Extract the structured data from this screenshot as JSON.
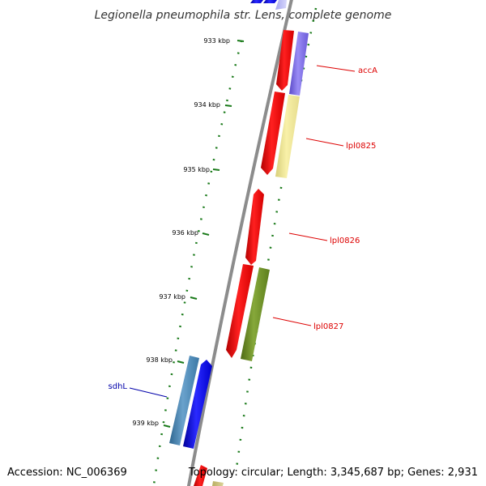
{
  "title": "Legionella pneumophila str. Lens, complete genome",
  "footer": {
    "accession": "Accession: NC_006369",
    "topology": "Topology: circular; Length: 3,345,687 bp; Genes: 2,931"
  },
  "ticks": [
    {
      "label": "933 kbp"
    },
    {
      "label": "934 kbp"
    },
    {
      "label": "935 kbp"
    },
    {
      "label": "936 kbp"
    },
    {
      "label": "937 kbp"
    },
    {
      "label": "938 kbp"
    },
    {
      "label": "939 kbp"
    }
  ],
  "gene_labels": [
    {
      "text": "accA",
      "color": "#dd0000"
    },
    {
      "text": "lpl0825",
      "color": "#dd0000"
    },
    {
      "text": "lpl0826",
      "color": "#dd0000"
    },
    {
      "text": "lpl0827",
      "color": "#dd0000"
    },
    {
      "text": "sdhL",
      "color": "#0000aa"
    }
  ],
  "colors": {
    "backbone": "#8c8c8c",
    "tick": "#1a7a1a",
    "strand_reverse": "#ff0000",
    "strand_forward_blue": "#0000ff",
    "cog_purple": "#7b68ee",
    "cog_pale_yellow": "#f0e68c",
    "cog_olive": "#6b8e23",
    "cog_steelblue": "#4682b4"
  }
}
